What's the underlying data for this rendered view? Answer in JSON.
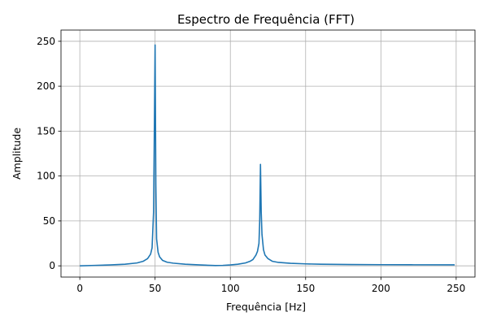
{
  "chart_data": {
    "type": "line",
    "title": "Espectro de Frequência (FFT)",
    "xlabel": "Frequência [Hz]",
    "ylabel": "Amplitude",
    "xlim": [
      -12.5,
      262.5
    ],
    "ylim": [
      -12.5,
      262.5
    ],
    "xticks": [
      0,
      50,
      100,
      150,
      200,
      250
    ],
    "yticks": [
      0,
      50,
      100,
      150,
      200,
      250
    ],
    "grid": true,
    "series": [
      {
        "color": "#1f77b4",
        "x": [
          0,
          10,
          20,
          30,
          38,
          42,
          45,
          47,
          48,
          49,
          49.5,
          50,
          50.5,
          51,
          52,
          53,
          55,
          58,
          62,
          70,
          80,
          90,
          95,
          100,
          105,
          110,
          113,
          115,
          117,
          118,
          119,
          119.5,
          120,
          120.5,
          121,
          122,
          123,
          125,
          128,
          132,
          140,
          150,
          160,
          180,
          200,
          220,
          249
        ],
        "y": [
          0,
          0.5,
          1.0,
          1.8,
          3.2,
          5,
          8,
          13,
          20,
          60,
          150,
          246,
          90,
          30,
          15,
          10,
          6,
          4,
          3,
          1.8,
          1.0,
          0.3,
          0.5,
          1.0,
          1.8,
          3.2,
          5,
          7,
          12,
          16,
          25,
          50,
          113,
          60,
          35,
          18,
          12,
          8,
          5,
          3.8,
          2.8,
          2.2,
          1.8,
          1.5,
          1.3,
          1.2,
          1.1
        ]
      }
    ]
  }
}
